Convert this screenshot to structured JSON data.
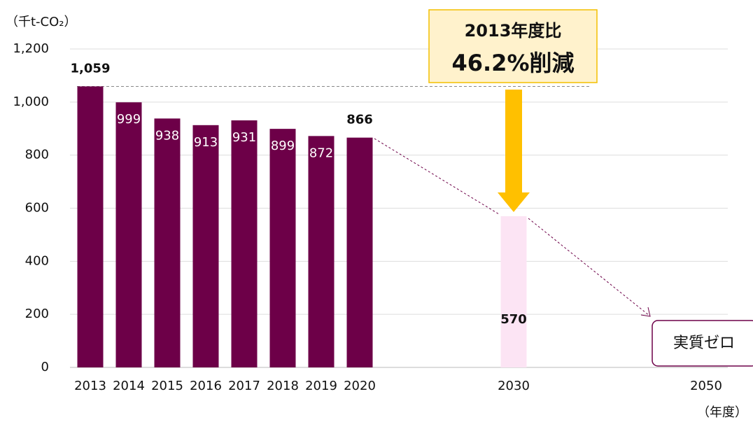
{
  "chart_data": {
    "type": "bar",
    "y_axis_label": "（千t-CO₂）",
    "x_axis_label": "（年度）",
    "categories": [
      "2013",
      "2014",
      "2015",
      "2016",
      "2017",
      "2018",
      "2019",
      "2020",
      "2030",
      "2050"
    ],
    "values": [
      1059,
      999,
      938,
      913,
      931,
      899,
      872,
      866,
      570,
      null
    ],
    "value_labels": [
      "1,059",
      "999",
      "938",
      "913",
      "931",
      "899",
      "872",
      "866",
      "570",
      null
    ],
    "colors": [
      "#6d0048",
      "#6d0048",
      "#6d0048",
      "#6d0048",
      "#6d0048",
      "#6d0048",
      "#6d0048",
      "#6d0048",
      "#fce4f4",
      null
    ],
    "ylim": [
      0,
      1200
    ],
    "yticks": [
      0,
      200,
      400,
      600,
      800,
      {
        "value": 1000,
        "label": "1,000"
      },
      {
        "value": 1200,
        "label": "1,200"
      }
    ],
    "grid": true,
    "annotations": {
      "reduction_line1": "2013年度比",
      "reduction_line2": "46.2%削減",
      "target_2050": "実質ゼロ"
    }
  }
}
